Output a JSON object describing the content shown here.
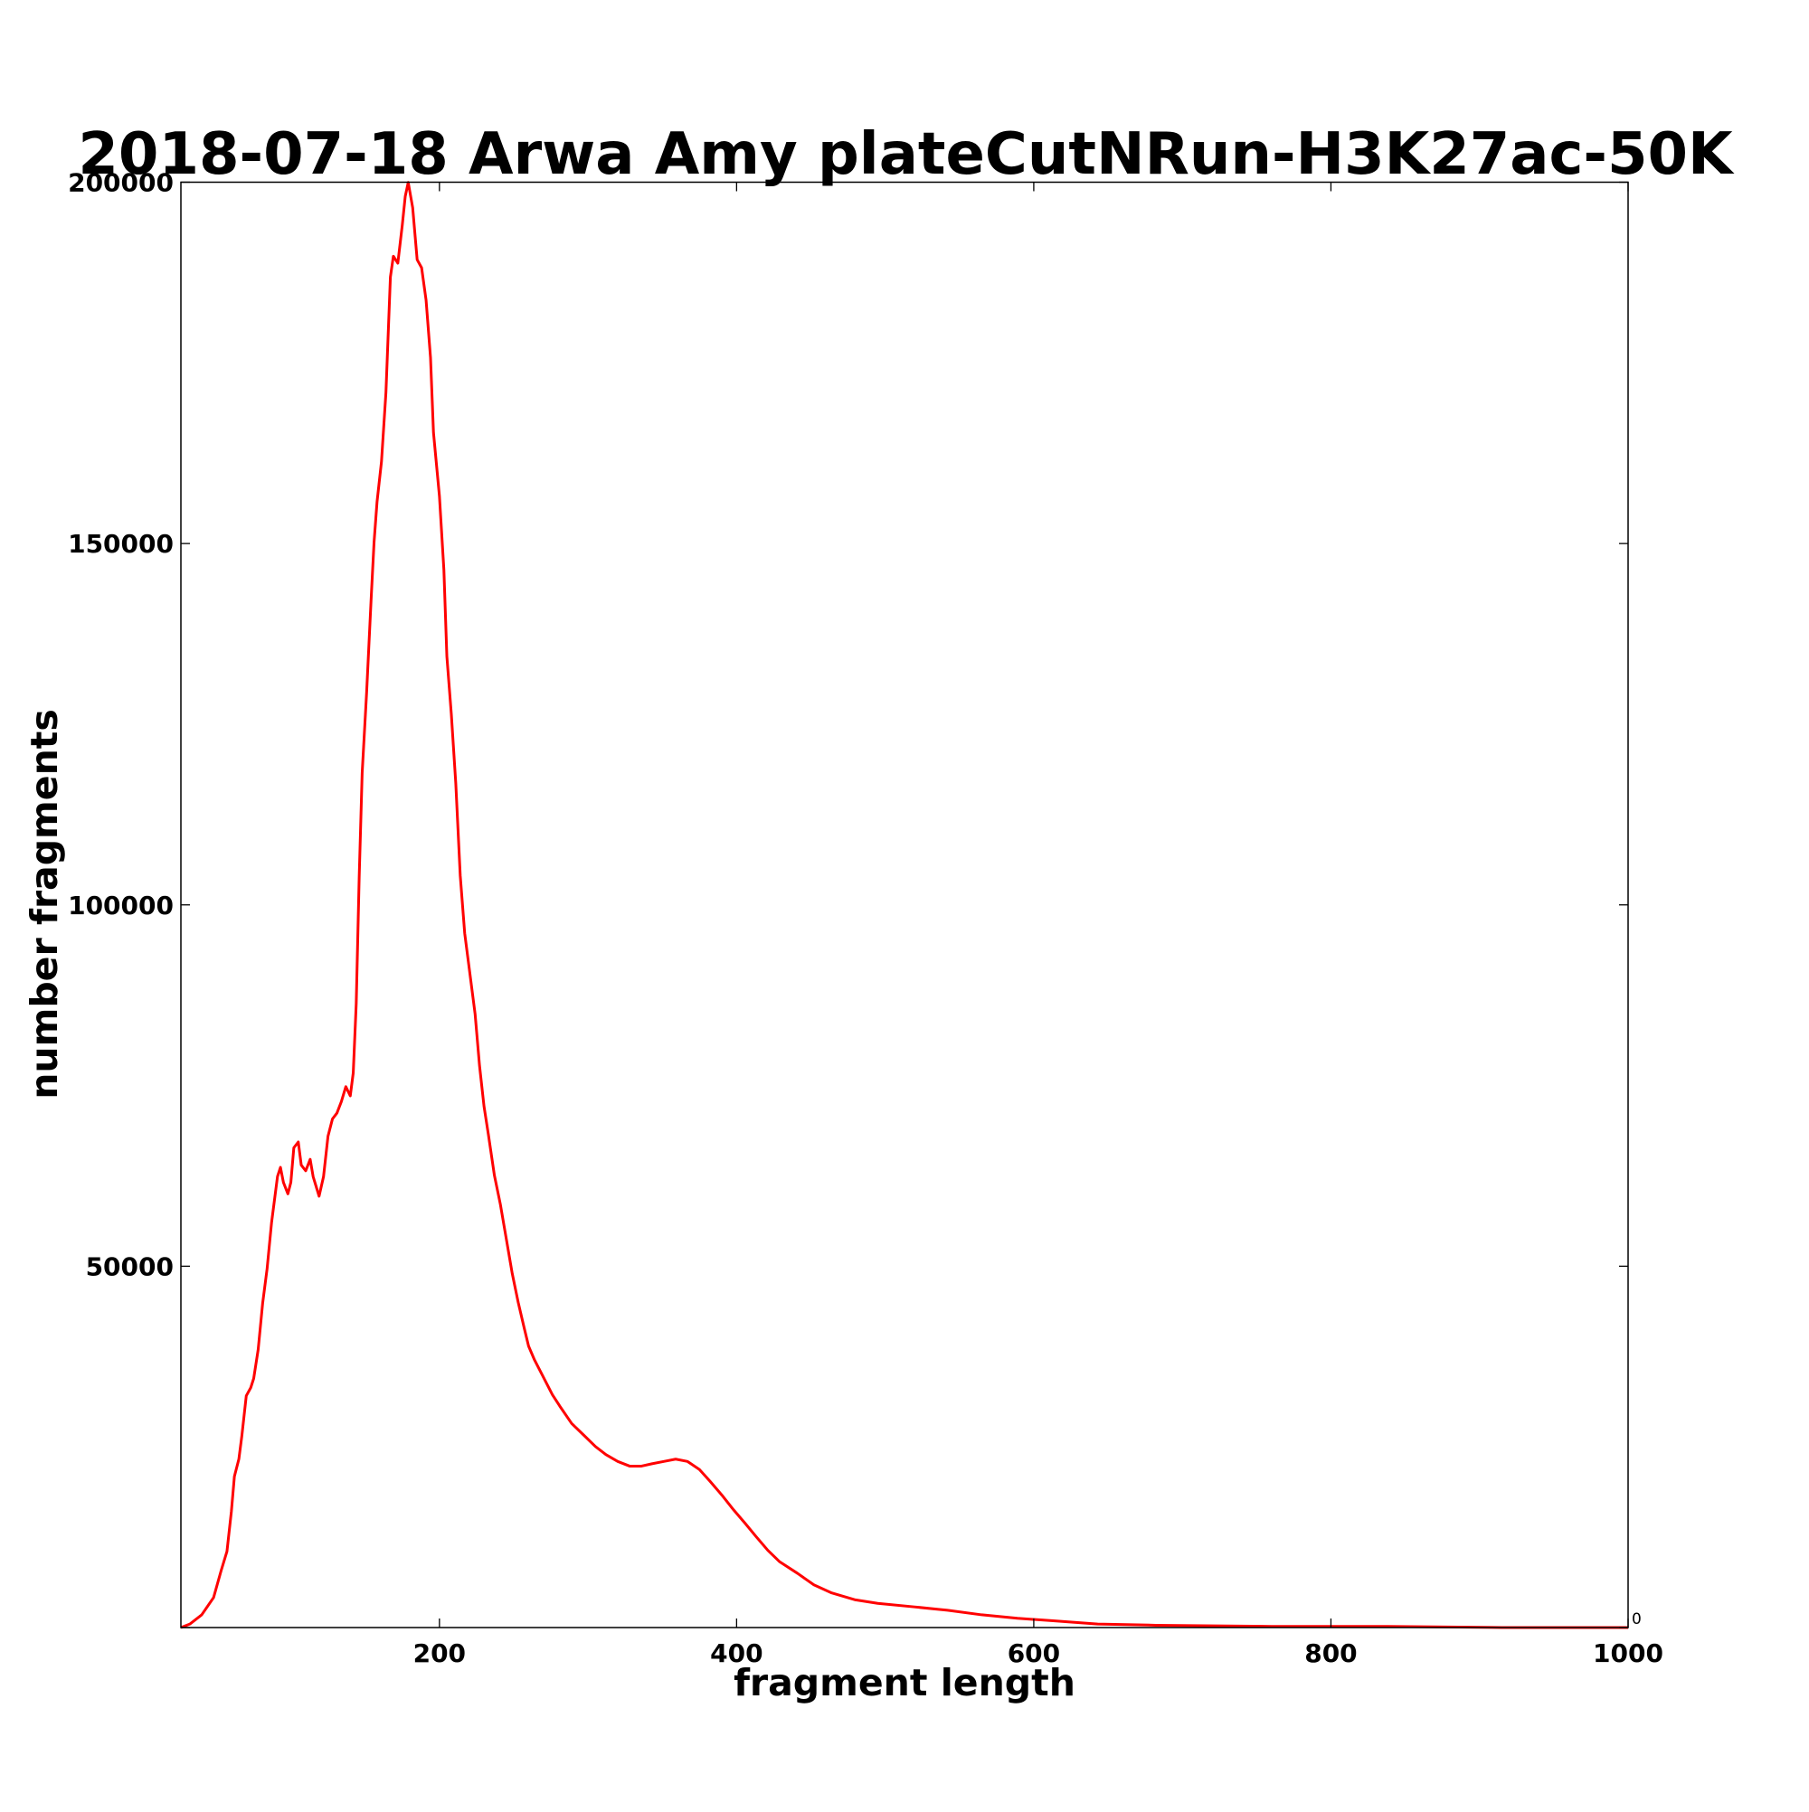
{
  "chart_data": {
    "type": "line",
    "title": "2018-07-18 Arwa Amy plateCutNRun-H3K27ac-50K",
    "xlabel": "fragment length",
    "ylabel": "number fragments",
    "xlim": [
      26,
      1000
    ],
    "ylim": [
      0,
      200000
    ],
    "xticks": [
      200,
      400,
      600,
      800,
      1000
    ],
    "yticks": [
      0,
      50000,
      100000,
      150000,
      200000
    ],
    "grid": false,
    "x": [
      26,
      32,
      40,
      48,
      53,
      57,
      60,
      62,
      65,
      67,
      70,
      73,
      75,
      78,
      81,
      84,
      87,
      91,
      93,
      95,
      98,
      100,
      102,
      105,
      107,
      110,
      113,
      115,
      119,
      122,
      125,
      128,
      131,
      134,
      137,
      140,
      142,
      144,
      146,
      148,
      151,
      154,
      156,
      158,
      161,
      164,
      167,
      169,
      172,
      175,
      177,
      179,
      182,
      185,
      188,
      191,
      194,
      196,
      200,
      203,
      205,
      208,
      211,
      214,
      217,
      220,
      224,
      227,
      230,
      233,
      237,
      241,
      245,
      249,
      253,
      257,
      260,
      264,
      270,
      276,
      281,
      289,
      297,
      305,
      312,
      320,
      328,
      336,
      343,
      351,
      359,
      367,
      375,
      382,
      390,
      398,
      406,
      413,
      421,
      429,
      441,
      452,
      464,
      480,
      495,
      519,
      542,
      565,
      589,
      612,
      643,
      682,
      760,
      838,
      915,
      1000
    ],
    "series": [
      {
        "name": "fragments",
        "color": "#ff0000",
        "values": [
          0,
          480,
          1760,
          4150,
          7820,
          10530,
          16120,
          20910,
          23300,
          26490,
          32070,
          33190,
          34470,
          38460,
          44840,
          49630,
          56010,
          62400,
          63680,
          61600,
          60010,
          61600,
          66390,
          67190,
          63990,
          63200,
          64790,
          62400,
          59690,
          62400,
          67990,
          70380,
          71180,
          72780,
          74850,
          73570,
          76760,
          86340,
          103900,
          118260,
          129430,
          142200,
          150180,
          155760,
          161350,
          170920,
          186880,
          189760,
          188800,
          194070,
          198060,
          199970,
          196460,
          189280,
          188160,
          183700,
          175710,
          165340,
          156560,
          146340,
          134370,
          126400,
          116820,
          104050,
          96070,
          91280,
          84900,
          77720,
          72130,
          68140,
          62560,
          58570,
          53780,
          48990,
          45000,
          41490,
          38940,
          37020,
          34630,
          32230,
          30640,
          28240,
          26650,
          25050,
          23940,
          22980,
          22340,
          22340,
          22660,
          22980,
          23300,
          22980,
          21860,
          20270,
          18350,
          16280,
          14360,
          12610,
          10690,
          9100,
          7500,
          5910,
          4790,
          3830,
          3350,
          2870,
          2390,
          1760,
          1280,
          960,
          480,
          320,
          160,
          160,
          0,
          0
        ]
      }
    ]
  }
}
